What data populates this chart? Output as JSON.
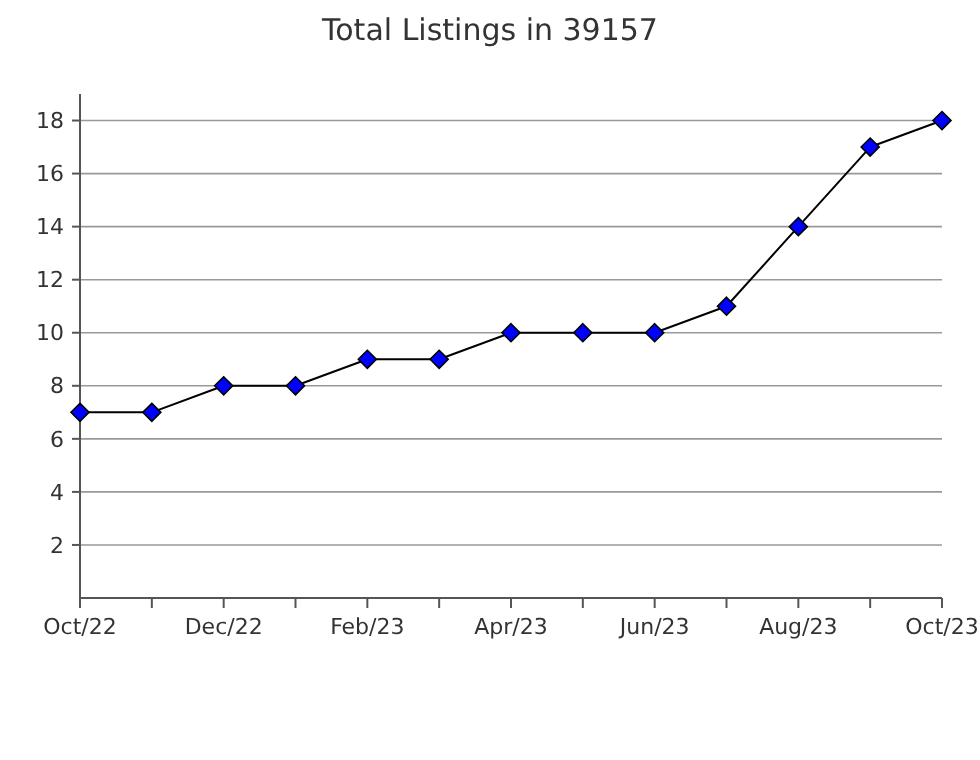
{
  "chart_data": {
    "type": "line",
    "title": "Total Listings in 39157",
    "categories": [
      "Oct/22",
      null,
      "Dec/22",
      null,
      "Feb/23",
      null,
      "Apr/23",
      null,
      "Jun/23",
      null,
      "Aug/23",
      null,
      "Oct/23"
    ],
    "series": [
      {
        "color": "#0000ff",
        "values": [
          7,
          7,
          8,
          8,
          9,
          9,
          10,
          10,
          10,
          11,
          14,
          17,
          18
        ]
      }
    ],
    "ylim": [
      0,
      19
    ],
    "yticks": [
      2,
      4,
      6,
      8,
      10,
      12,
      14,
      16,
      18
    ],
    "grid": "y",
    "marker": "diamond",
    "line_style": "solid"
  }
}
